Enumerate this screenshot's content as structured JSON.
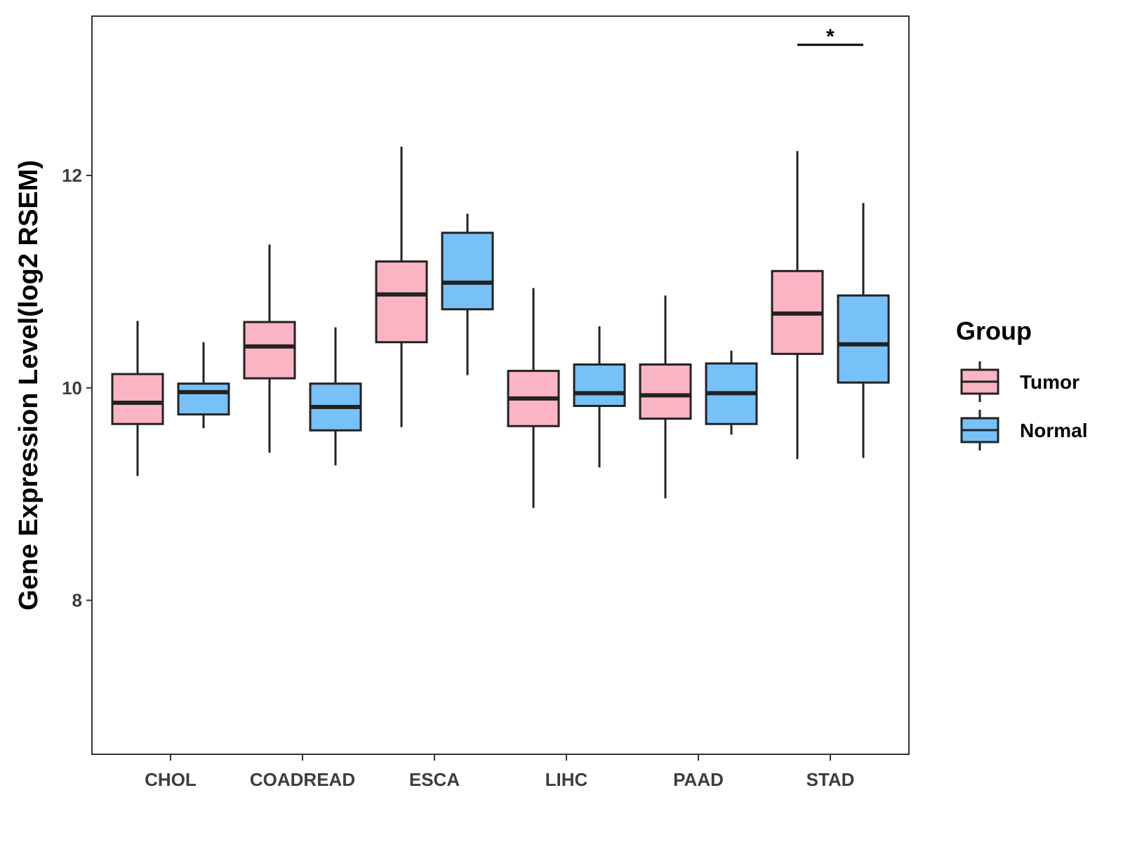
{
  "chart_data": {
    "type": "boxplot",
    "title": "",
    "xlabel": "",
    "ylabel": "Gene Expression Level(log2 RSEM)",
    "ylim": [
      6.55,
      13.5
    ],
    "yticks": [
      8,
      10,
      12
    ],
    "grid": false,
    "categories": [
      "CHOL",
      "COADREAD",
      "ESCA",
      "LIHC",
      "PAAD",
      "STAD"
    ],
    "legend": {
      "title": "Group",
      "position": "right",
      "entries": [
        {
          "name": "Tumor",
          "color": "#FBB4C4"
        },
        {
          "name": "Normal",
          "color": "#77C1F8"
        }
      ]
    },
    "series": [
      {
        "name": "Tumor",
        "color": "#FBB4C4",
        "boxes": [
          {
            "category": "CHOL",
            "whisker_low": 9.17,
            "q1": 9.66,
            "median": 9.86,
            "q3": 10.13,
            "whisker_high": 10.63
          },
          {
            "category": "COADREAD",
            "whisker_low": 9.39,
            "q1": 10.09,
            "median": 10.39,
            "q3": 10.62,
            "whisker_high": 11.35
          },
          {
            "category": "ESCA",
            "whisker_low": 9.63,
            "q1": 10.43,
            "median": 10.88,
            "q3": 11.19,
            "whisker_high": 12.27
          },
          {
            "category": "LIHC",
            "whisker_low": 8.87,
            "q1": 9.64,
            "median": 9.9,
            "q3": 10.16,
            "whisker_high": 10.94
          },
          {
            "category": "PAAD",
            "whisker_low": 8.96,
            "q1": 9.71,
            "median": 9.93,
            "q3": 10.22,
            "whisker_high": 10.87
          },
          {
            "category": "STAD",
            "whisker_low": 9.33,
            "q1": 10.32,
            "median": 10.7,
            "q3": 11.1,
            "whisker_high": 12.23
          }
        ]
      },
      {
        "name": "Normal",
        "color": "#77C1F8",
        "boxes": [
          {
            "category": "CHOL",
            "whisker_low": 9.62,
            "q1": 9.75,
            "median": 9.96,
            "q3": 10.04,
            "whisker_high": 10.43
          },
          {
            "category": "COADREAD",
            "whisker_low": 9.27,
            "q1": 9.6,
            "median": 9.82,
            "q3": 10.04,
            "whisker_high": 10.57
          },
          {
            "category": "ESCA",
            "whisker_low": 10.12,
            "q1": 10.74,
            "median": 10.99,
            "q3": 11.46,
            "whisker_high": 11.64
          },
          {
            "category": "LIHC",
            "whisker_low": 9.25,
            "q1": 9.83,
            "median": 9.95,
            "q3": 10.22,
            "whisker_high": 10.58
          },
          {
            "category": "PAAD",
            "whisker_low": 9.56,
            "q1": 9.66,
            "median": 9.95,
            "q3": 10.23,
            "whisker_high": 10.35
          },
          {
            "category": "STAD",
            "whisker_low": 9.34,
            "q1": 10.05,
            "median": 10.41,
            "q3": 10.87,
            "whisker_high": 11.74
          }
        ]
      }
    ],
    "annotations": [
      {
        "category": "STAD",
        "text": "*",
        "y": 13.23
      }
    ]
  }
}
